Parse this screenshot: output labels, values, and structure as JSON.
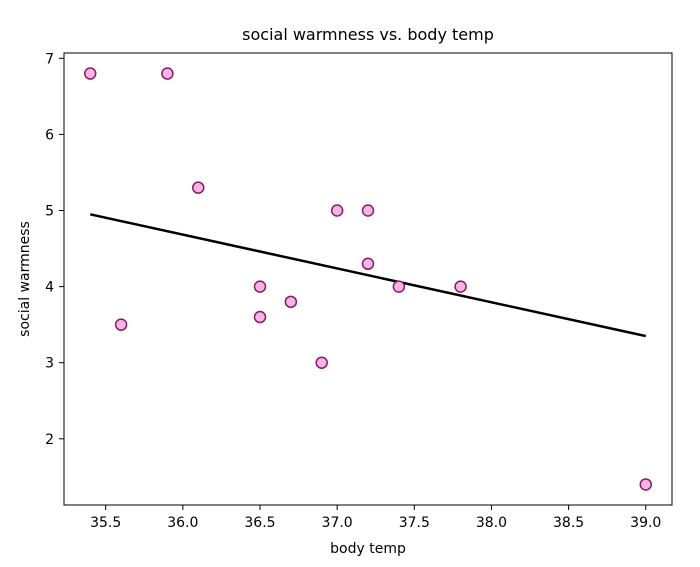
{
  "chart_data": {
    "type": "scatter",
    "title": "social warmness vs. body temp",
    "xlabel": "body temp",
    "ylabel": "social warmness",
    "xlim": [
      35.23,
      39.17
    ],
    "ylim": [
      1.13,
      7.07
    ],
    "xticks": [
      35.5,
      36.0,
      36.5,
      37.0,
      37.5,
      38.0,
      38.5,
      39.0
    ],
    "xtick_labels": [
      "35.5",
      "36.0",
      "36.5",
      "37.0",
      "37.5",
      "38.0",
      "38.5",
      "39.0"
    ],
    "yticks": [
      2,
      3,
      4,
      5,
      6,
      7
    ],
    "ytick_labels": [
      "2",
      "3",
      "4",
      "5",
      "6",
      "7"
    ],
    "grid": false,
    "points": [
      {
        "x": 35.4,
        "y": 6.8
      },
      {
        "x": 35.6,
        "y": 3.5
      },
      {
        "x": 35.9,
        "y": 6.8
      },
      {
        "x": 36.1,
        "y": 5.3
      },
      {
        "x": 36.5,
        "y": 4.0
      },
      {
        "x": 36.5,
        "y": 3.6
      },
      {
        "x": 36.7,
        "y": 3.8
      },
      {
        "x": 36.9,
        "y": 3.0
      },
      {
        "x": 37.0,
        "y": 5.0
      },
      {
        "x": 37.2,
        "y": 5.0
      },
      {
        "x": 37.2,
        "y": 4.3
      },
      {
        "x": 37.4,
        "y": 4.0
      },
      {
        "x": 37.8,
        "y": 4.0
      },
      {
        "x": 39.0,
        "y": 1.4
      }
    ],
    "trend_line": {
      "x": [
        35.4,
        39.0
      ],
      "y": [
        4.95,
        3.35
      ]
    },
    "colors": {
      "marker_fill": "#f4b6e1",
      "marker_edge": "#8b1a6b",
      "line": "#000000"
    }
  }
}
